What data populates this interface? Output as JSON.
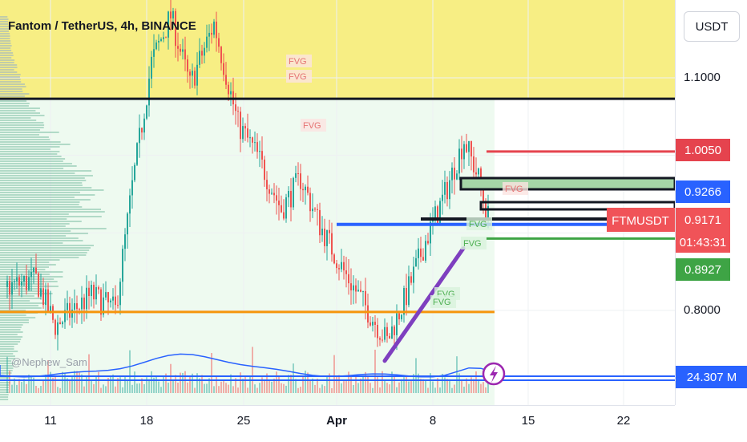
{
  "chart_data": {
    "type": "candlestick",
    "title": "Fantom / TetherUS, 4h, BINANCE",
    "symbol": "FTMUSDT",
    "author": "@Nephew_Sam",
    "currency": "USDT",
    "price_ticks": [
      "1.1000",
      "0.8000"
    ],
    "time_ticks": [
      "11",
      "18",
      "25",
      "Apr",
      "8",
      "15",
      "22"
    ],
    "price_markers": [
      {
        "label": "1.0050",
        "value": 1.005,
        "color": "#e5434e"
      },
      {
        "label": "0.9266",
        "value": 0.9266,
        "color": "#2962ff"
      },
      {
        "label": "0.9171",
        "value": 0.9171,
        "color": "#f05358",
        "countdown": "01:43:31"
      },
      {
        "label": "0.8927",
        "value": 0.8927,
        "color": "#3ea445"
      },
      {
        "label": "24.307 M",
        "value": 24.307,
        "color": "#2962ff",
        "unit": "volume"
      }
    ],
    "fvg_labels": [
      "FVG",
      "FVG",
      "FVG",
      "FVG",
      "FVG",
      "FVG",
      "FVG",
      "FVG"
    ],
    "supply_zone": {
      "low": 1.073,
      "high": 1.235,
      "color": "#f7ee84"
    },
    "horizontal_levels": [
      {
        "value": 1.073,
        "color": "#131722"
      },
      {
        "value": 1.005,
        "color": "#e5434e"
      },
      {
        "value": 0.911,
        "color": "#2962ff"
      },
      {
        "value": 0.8927,
        "color": "#3ea445"
      },
      {
        "value": 0.798,
        "color": "#f5960c"
      }
    ],
    "trendline": {
      "from_price": 0.735,
      "to_price": 0.88,
      "color": "#7e3fbf"
    },
    "grid": true,
    "volume_series": true,
    "volume_profile": true
  }
}
